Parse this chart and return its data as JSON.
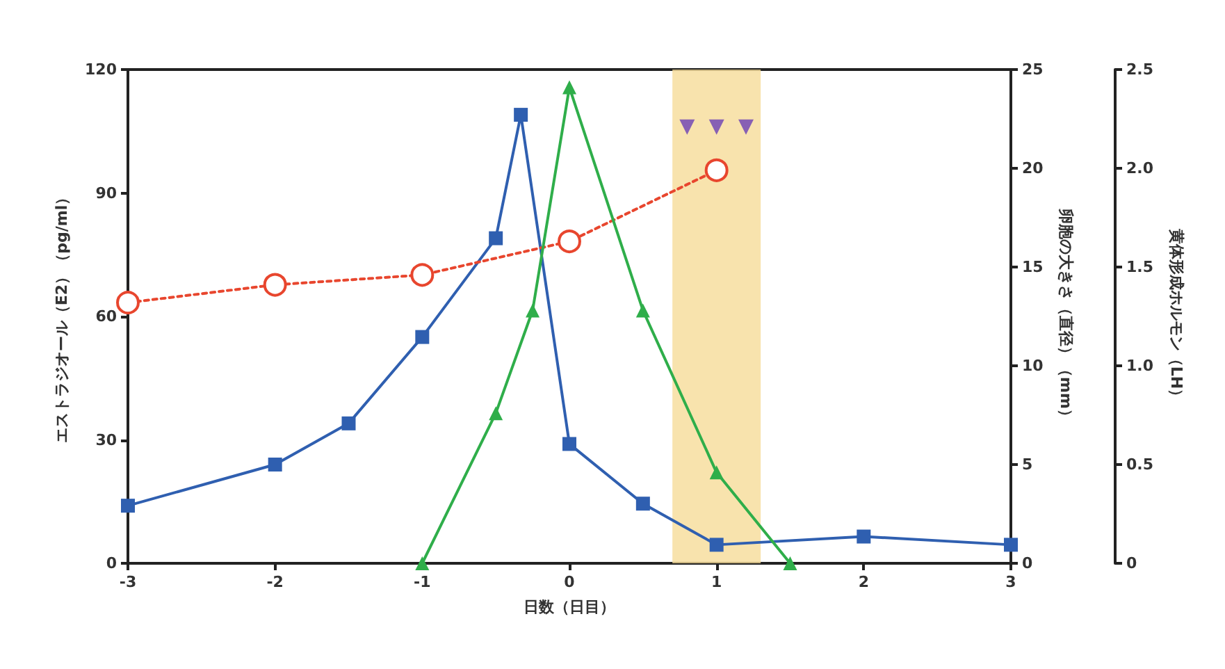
{
  "chart_data": {
    "type": "line",
    "xlabel": "日数（日目）",
    "ylabel": "エストラジオール（E2）（pg/ml）",
    "y2label": "卵胞の大きさ（直径）（mm）",
    "y3label": "黄体形成ホルモン（LH）",
    "xlim": [
      -3,
      3
    ],
    "xticks": [
      -3,
      -2,
      -1,
      0,
      1,
      2,
      3
    ],
    "ylim": [
      0,
      120
    ],
    "yticks": [
      0,
      30,
      60,
      90,
      120
    ],
    "y2lim": [
      0,
      25
    ],
    "y2ticks": [
      0,
      5,
      10,
      15,
      20,
      25
    ],
    "y3lim": [
      0,
      2.5
    ],
    "y3ticks": [
      {
        "value": 0,
        "label": "0"
      },
      0.5,
      {
        "value": 1,
        "label": "1.0"
      },
      1.5,
      {
        "value": 2,
        "label": "2.0"
      },
      2.5
    ],
    "grid": false,
    "bands": [
      {
        "axis": "x",
        "from": 0.7,
        "to": 1.3,
        "color": "#f6dc98"
      }
    ],
    "series": [
      {
        "color": "#2f5fb0",
        "marker": "square",
        "line_style": "solid",
        "x": [
          -3,
          -2,
          -1.5,
          -1,
          -0.5,
          -0.33,
          0,
          0.5,
          1,
          2,
          3
        ],
        "values": [
          14,
          24,
          34,
          55,
          79,
          109,
          29,
          14.5,
          4.5,
          6.5,
          4.5
        ]
      },
      {
        "color": "#e8462e",
        "marker": "circle",
        "line_style": "dotted",
        "axis": "y2",
        "x": [
          -3,
          -2,
          -1,
          0,
          1
        ],
        "values": [
          13.2,
          14.1,
          14.6,
          16.3,
          19.9
        ]
      },
      {
        "color": "#2fae4a",
        "marker": "triangle",
        "line_style": "solid",
        "axis": "y3",
        "x": [
          -1,
          -0.5,
          -0.25,
          0,
          0.5,
          1,
          1.5
        ],
        "values": [
          0,
          0.76,
          1.28,
          2.41,
          1.28,
          0.46,
          0
        ]
      },
      {
        "type": "scatter",
        "color": "#6a3fb5",
        "marker": "triangle",
        "x": [
          0.8,
          1,
          1.2
        ],
        "values": [
          106,
          106,
          106
        ]
      }
    ]
  }
}
